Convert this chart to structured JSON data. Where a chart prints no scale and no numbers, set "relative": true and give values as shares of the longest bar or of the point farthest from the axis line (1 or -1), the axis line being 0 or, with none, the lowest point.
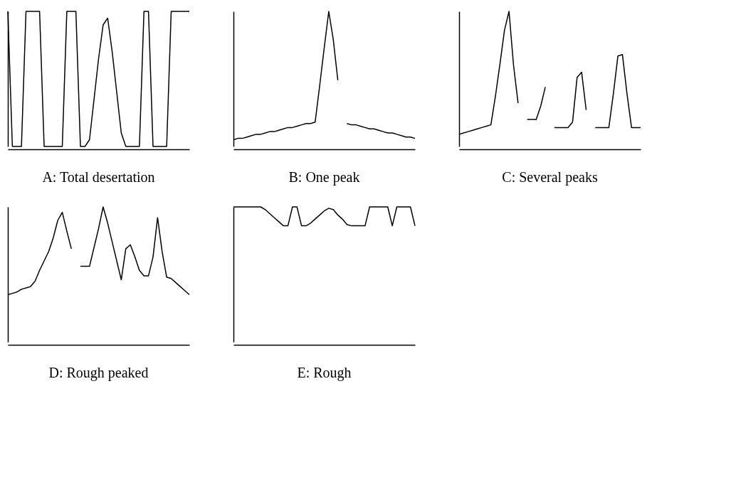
{
  "chart_data": [
    {
      "type": "line",
      "title": "A: Total desertation",
      "relative": true,
      "tick_labels": false,
      "grid": false,
      "legend": false,
      "categories": [
        null,
        null,
        null,
        null,
        null,
        null,
        null,
        null,
        null,
        null,
        null,
        null,
        null,
        null,
        null,
        null,
        null,
        null,
        null,
        null,
        null,
        null,
        null,
        null,
        null,
        null,
        null,
        null,
        null,
        null,
        null,
        null,
        null,
        null,
        null,
        null,
        null,
        null,
        null,
        null,
        null
      ],
      "series": [
        {
          "color": "#000000",
          "values": [
            1,
            0,
            0,
            0,
            1,
            1,
            1,
            1,
            0,
            0,
            0,
            0,
            0,
            1,
            1,
            1,
            0,
            0,
            0.05,
            0.35,
            0.65,
            0.9,
            0.95,
            0.7,
            0.4,
            0.1,
            0,
            0,
            0,
            0,
            1,
            1,
            0,
            0,
            0,
            0,
            1,
            1,
            1,
            1,
            1
          ]
        }
      ]
    },
    {
      "type": "line",
      "title": "B: One peak",
      "relative": true,
      "tick_labels": false,
      "grid": false,
      "legend": false,
      "categories": [
        null,
        null,
        null,
        null,
        null,
        null,
        null,
        null,
        null,
        null,
        null,
        null,
        null,
        null,
        null,
        null,
        null,
        null,
        null,
        null,
        null,
        null,
        null,
        null,
        null,
        null,
        null,
        null,
        null,
        null,
        null,
        null,
        null,
        null,
        null,
        null,
        null,
        null,
        null,
        null,
        null
      ],
      "series": [
        {
          "color": "#000000",
          "values": [
            0.05,
            0.06,
            0.06,
            0.07,
            0.08,
            0.09,
            0.09,
            0.1,
            0.11,
            0.11,
            0.12,
            0.13,
            0.14,
            0.14,
            0.15,
            0.16,
            0.17,
            0.17,
            0.18,
            0.45,
            0.73,
            1,
            0.79,
            0.49,
            null,
            null,
            null,
            null,
            null,
            null,
            null,
            null,
            null,
            null,
            null,
            null,
            null,
            null,
            null,
            null,
            null
          ]
        },
        {
          "color": "#000000",
          "values": [
            null,
            null,
            null,
            null,
            null,
            null,
            null,
            null,
            null,
            null,
            null,
            null,
            null,
            null,
            null,
            null,
            null,
            null,
            null,
            null,
            null,
            null,
            null,
            null,
            null,
            0.17,
            0.16,
            0.16,
            0.15,
            0.14,
            0.13,
            0.13,
            0.12,
            0.11,
            0.1,
            0.1,
            0.09,
            0.08,
            0.07,
            0.07,
            0.06
          ]
        }
      ]
    },
    {
      "type": "line",
      "title": "C: Several peaks",
      "relative": true,
      "tick_labels": false,
      "grid": false,
      "legend": false,
      "categories": [
        null,
        null,
        null,
        null,
        null,
        null,
        null,
        null,
        null,
        null,
        null,
        null,
        null,
        null,
        null,
        null,
        null,
        null,
        null,
        null,
        null,
        null,
        null,
        null,
        null,
        null,
        null,
        null,
        null,
        null,
        null,
        null,
        null,
        null,
        null,
        null,
        null,
        null,
        null,
        null,
        null
      ],
      "series": [
        {
          "color": "#000000",
          "values": [
            0.09,
            0.1,
            0.11,
            0.12,
            0.13,
            0.14,
            0.15,
            0.16,
            0.37,
            0.61,
            0.86,
            1,
            0.6,
            0.32,
            null,
            null,
            null,
            null,
            null,
            null,
            null,
            null,
            null,
            null,
            null,
            null,
            null,
            null,
            null,
            null,
            null,
            null,
            null,
            null,
            null,
            null,
            null,
            null,
            null,
            null,
            null
          ]
        },
        {
          "color": "#000000",
          "values": [
            null,
            null,
            null,
            null,
            null,
            null,
            null,
            null,
            null,
            null,
            null,
            null,
            null,
            null,
            null,
            0.2,
            0.2,
            0.2,
            0.3,
            0.44,
            null,
            null,
            null,
            null,
            null,
            null,
            null,
            null,
            null,
            null,
            null,
            null,
            null,
            null,
            null,
            null,
            null,
            null,
            null,
            null,
            null
          ]
        },
        {
          "color": "#000000",
          "values": [
            null,
            null,
            null,
            null,
            null,
            null,
            null,
            null,
            null,
            null,
            null,
            null,
            null,
            null,
            null,
            null,
            null,
            null,
            null,
            null,
            null,
            0.14,
            0.14,
            0.14,
            0.14,
            0.18,
            0.51,
            0.55,
            0.27,
            null,
            null,
            null,
            null,
            null,
            null,
            null,
            null,
            null,
            null,
            null,
            null
          ]
        },
        {
          "color": "#000000",
          "values": [
            null,
            null,
            null,
            null,
            null,
            null,
            null,
            null,
            null,
            null,
            null,
            null,
            null,
            null,
            null,
            null,
            null,
            null,
            null,
            null,
            null,
            null,
            null,
            null,
            null,
            null,
            null,
            null,
            null,
            null,
            0.14,
            0.14,
            0.14,
            0.14,
            0.39,
            0.67,
            0.68,
            0.39,
            0.14,
            0.14,
            0.14
          ]
        }
      ]
    },
    {
      "type": "line",
      "title": "D: Rough peaked",
      "relative": true,
      "tick_labels": false,
      "grid": false,
      "legend": false,
      "categories": [
        null,
        null,
        null,
        null,
        null,
        null,
        null,
        null,
        null,
        null,
        null,
        null,
        null,
        null,
        null,
        null,
        null,
        null,
        null,
        null,
        null,
        null,
        null,
        null,
        null,
        null,
        null,
        null,
        null,
        null,
        null,
        null,
        null,
        null,
        null,
        null,
        null,
        null,
        null,
        null,
        null
      ],
      "series": [
        {
          "color": "#000000",
          "values": [
            0.35,
            0.36,
            0.37,
            0.39,
            0.4,
            0.41,
            0.45,
            0.53,
            0.6,
            0.67,
            0.77,
            0.9,
            0.96,
            0.82,
            0.69,
            null,
            null,
            null,
            null,
            null,
            null,
            null,
            null,
            null,
            null,
            null,
            null,
            null,
            null,
            null,
            null,
            null,
            null,
            null,
            null,
            null,
            null,
            null,
            null,
            null,
            null
          ]
        },
        {
          "color": "#000000",
          "values": [
            null,
            null,
            null,
            null,
            null,
            null,
            null,
            null,
            null,
            null,
            null,
            null,
            null,
            null,
            null,
            null,
            0.56,
            0.56,
            0.56,
            0.7,
            0.84,
            1,
            0.88,
            0.74,
            0.6,
            0.46,
            0.69,
            0.72,
            0.63,
            0.53,
            0.49,
            0.49,
            0.63,
            0.92,
            0.67,
            0.48,
            0.47,
            0.44,
            0.41,
            0.38,
            0.35
          ]
        }
      ]
    },
    {
      "type": "line",
      "title": "E: Rough",
      "relative": true,
      "tick_labels": false,
      "grid": false,
      "legend": false,
      "categories": [
        null,
        null,
        null,
        null,
        null,
        null,
        null,
        null,
        null,
        null,
        null,
        null,
        null,
        null,
        null,
        null,
        null,
        null,
        null,
        null,
        null,
        null,
        null,
        null,
        null,
        null,
        null,
        null,
        null,
        null,
        null,
        null,
        null,
        null,
        null,
        null,
        null,
        null,
        null,
        null,
        null
      ],
      "series": [
        {
          "color": "#000000",
          "values": [
            1,
            1,
            1,
            1,
            1,
            1,
            1,
            0.98,
            0.95,
            0.92,
            0.89,
            0.86,
            0.86,
            1,
            1,
            0.86,
            0.86,
            0.88,
            0.91,
            0.94,
            0.97,
            0.99,
            0.98,
            0.94,
            0.91,
            0.87,
            0.86,
            0.86,
            0.86,
            0.86,
            1,
            1,
            1,
            1,
            1,
            0.86,
            1,
            1,
            1,
            1,
            0.86
          ]
        }
      ]
    }
  ]
}
